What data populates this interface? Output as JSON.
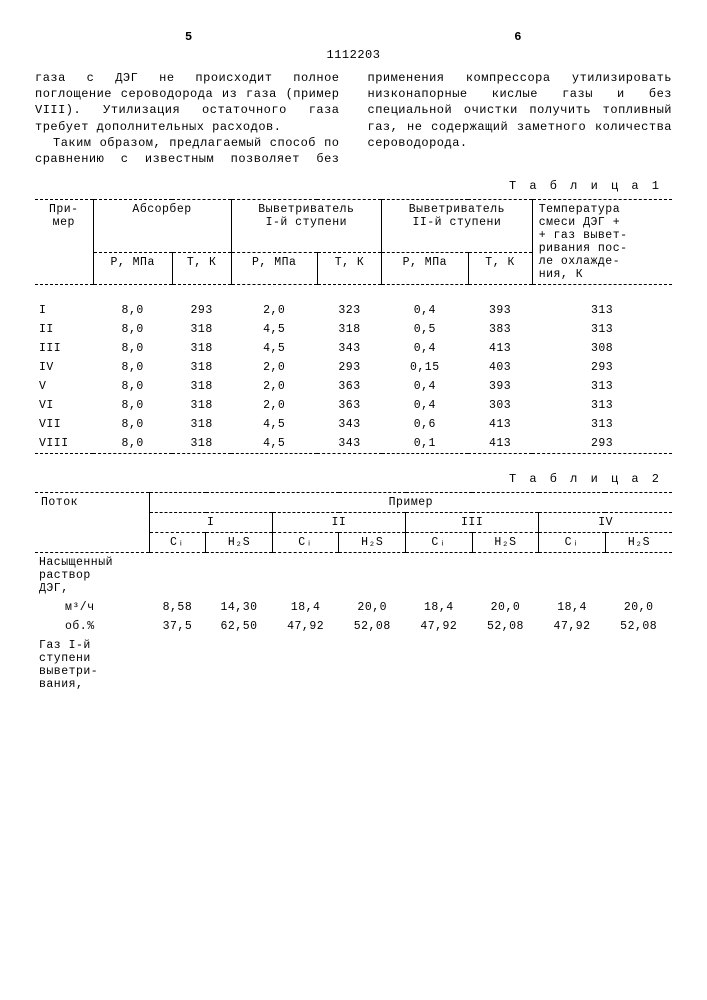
{
  "doc_number": "1112203",
  "col_left_num": "5",
  "col_right_num": "6",
  "paragraphs": {
    "p1": "газа с ДЭГ не происходит полное поглощение сероводорода из газа (пример VIII). Утилизация остаточного газа требует дополнительных расходов.",
    "p2": "Таким образом, предлагаемый способ по сравнению с известным позволяет без применения компрессора утилизировать низконапорные кислые газы и без специальной очистки получить топливный газ, не содержащий заметного количества сероводорода."
  },
  "table1": {
    "label": "Т а б л и ц а  1",
    "headers": {
      "primer": "При-\nмер",
      "absorber": "Абсорбер",
      "vyv1": "Выветриватель\nI-й ступени",
      "vyv2": "Выветриватель\nII-й ступени",
      "temp": "Температура\nсмеси ДЭГ +\n+ газ вывет-\nривания пос-\nле охлажде-\nния, К",
      "p_mpa": "Р, МПа",
      "t_k": "Т, К"
    },
    "rows": [
      [
        "I",
        "8,0",
        "293",
        "2,0",
        "323",
        "0,4",
        "393",
        "313"
      ],
      [
        "II",
        "8,0",
        "318",
        "4,5",
        "318",
        "0,5",
        "383",
        "313"
      ],
      [
        "III",
        "8,0",
        "318",
        "4,5",
        "343",
        "0,4",
        "413",
        "308"
      ],
      [
        "IV",
        "8,0",
        "318",
        "2,0",
        "293",
        "0,15",
        "403",
        "293"
      ],
      [
        "V",
        "8,0",
        "318",
        "2,0",
        "363",
        "0,4",
        "393",
        "313"
      ],
      [
        "VI",
        "8,0",
        "318",
        "2,0",
        "363",
        "0,4",
        "303",
        "313"
      ],
      [
        "VII",
        "8,0",
        "318",
        "4,5",
        "343",
        "0,6",
        "413",
        "313"
      ],
      [
        "VIII",
        "8,0",
        "318",
        "4,5",
        "343",
        "0,1",
        "413",
        "293"
      ]
    ]
  },
  "table2": {
    "label": "Т а б л и ц а  2",
    "headers": {
      "potok": "Поток",
      "primer": "Пример",
      "groups": [
        "I",
        "II",
        "III",
        "IV"
      ],
      "ci": "Сᵢ",
      "h2s": "H₂S"
    },
    "rowlabels": {
      "nas": "Насыщенный\nраствор\nДЭГ,",
      "m3ch": "м³/ч",
      "obpct": "об.%",
      "gaz1": "Газ I-й\nступени\nвыветри-\nвания,"
    },
    "rows_m3ch": [
      "8,58",
      "14,30",
      "18,4",
      "20,0",
      "18,4",
      "20,0",
      "18,4",
      "20,0"
    ],
    "rows_obpct": [
      "37,5",
      "62,50",
      "47,92",
      "52,08",
      "47,92",
      "52,08",
      "47,92",
      "52,08"
    ]
  }
}
